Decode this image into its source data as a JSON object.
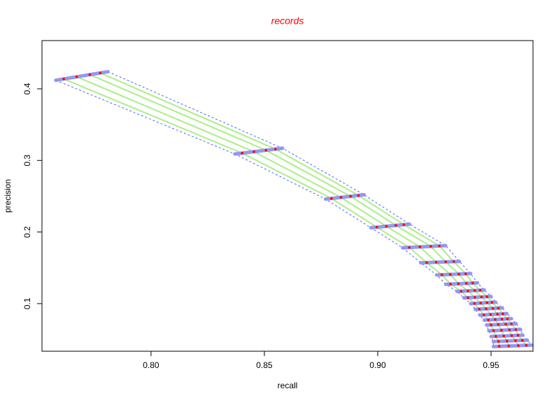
{
  "chart_data": {
    "type": "line",
    "title": "records",
    "title_color": "#ff0000",
    "xlabel": "recall",
    "ylabel": "precision",
    "xlim": [
      0.7519,
      0.9685
    ],
    "ylim": [
      0.0335,
      0.4674
    ],
    "xticks": [
      {
        "value": 0.8,
        "label": "0.80"
      },
      0.85,
      {
        "value": 0.9,
        "label": "0.90"
      },
      0.95
    ],
    "yticks": [
      0.1,
      0.2,
      0.3,
      0.4
    ],
    "run_color": "#8fe860",
    "point_color": "#ff0000",
    "band_color": "#8c8cf0",
    "envelope_color": "#3355ff",
    "bands": {
      "x_lo": [
        0.758,
        0.837,
        0.877,
        0.897,
        0.911,
        0.919,
        0.926,
        0.93,
        0.935,
        0.938,
        0.941,
        0.943,
        0.945,
        0.947,
        0.948,
        0.949,
        0.95,
        0.951,
        0.951
      ],
      "x_hi": [
        0.781,
        0.858,
        0.894,
        0.914,
        0.93,
        0.936,
        0.941,
        0.944,
        0.947,
        0.95,
        0.952,
        0.955,
        0.957,
        0.959,
        0.961,
        0.963,
        0.964,
        0.966,
        0.968
      ],
      "y_lo": [
        0.412,
        0.309,
        0.246,
        0.206,
        0.178,
        0.157,
        0.14,
        0.127,
        0.117,
        0.108,
        0.1,
        0.092,
        0.084,
        0.077,
        0.07,
        0.062,
        0.054,
        0.047,
        0.04
      ],
      "y_hi": [
        0.424,
        0.317,
        0.252,
        0.211,
        0.181,
        0.159,
        0.142,
        0.129,
        0.119,
        0.11,
        0.102,
        0.094,
        0.086,
        0.079,
        0.072,
        0.064,
        0.056,
        0.049,
        0.042
      ]
    },
    "series": [
      {
        "x": [
          0.7615,
          0.8402,
          0.8796,
          0.8996,
          0.9139,
          0.9216,
          0.9283,
          0.9321,
          0.9368,
          0.9398,
          0.9427,
          0.9448,
          0.9468,
          0.9488,
          0.95,
          0.9511,
          0.9521,
          0.9533,
          0.9536
        ],
        "values": [
          0.4138,
          0.3102,
          0.2469,
          0.2068,
          0.1785,
          0.1573,
          0.1403,
          0.1273,
          0.1173,
          0.1083,
          0.1003,
          0.0923,
          0.0843,
          0.0773,
          0.0703,
          0.0623,
          0.0543,
          0.0473,
          0.0403
        ]
      },
      {
        "x": [
          0.7672,
          0.8454,
          0.8838,
          0.9038,
          0.9186,
          0.9258,
          0.932,
          0.9356,
          0.9398,
          0.9428,
          0.9454,
          0.9478,
          0.9498,
          0.9518,
          0.9532,
          0.9546,
          0.9556,
          0.957,
          0.9578
        ],
        "values": [
          0.4168,
          0.3122,
          0.2484,
          0.208,
          0.1792,
          0.1578,
          0.1408,
          0.1278,
          0.1178,
          0.1088,
          0.1008,
          0.0928,
          0.0848,
          0.0778,
          0.0708,
          0.0628,
          0.0548,
          0.0478,
          0.0408
        ]
      },
      {
        "x": [
          0.773,
          0.8507,
          0.888,
          0.908,
          0.9234,
          0.93,
          0.9358,
          0.9391,
          0.9428,
          0.9458,
          0.9482,
          0.9508,
          0.9528,
          0.9548,
          0.9565,
          0.9581,
          0.9591,
          0.9608,
          0.962
        ],
        "values": [
          0.4198,
          0.3142,
          0.2499,
          0.2093,
          0.17995,
          0.1583,
          0.1413,
          0.1283,
          0.1183,
          0.1093,
          0.1013,
          0.0933,
          0.0853,
          0.0783,
          0.0713,
          0.0633,
          0.0553,
          0.0483,
          0.0413
        ]
      },
      {
        "x": [
          0.7776,
          0.8549,
          0.8915,
          0.9115,
          0.9272,
          0.9335,
          0.9388,
          0.9419,
          0.9452,
          0.9482,
          0.9504,
          0.9532,
          0.9552,
          0.9572,
          0.959,
          0.9609,
          0.9619,
          0.9638,
          0.9655
        ],
        "values": [
          0.4222,
          0.3158,
          0.2511,
          0.2103,
          0.18055,
          0.1587,
          0.1417,
          0.1287,
          0.1187,
          0.1097,
          0.1017,
          0.0937,
          0.0857,
          0.0787,
          0.0717,
          0.0637,
          0.0557,
          0.0487,
          0.0417
        ]
      }
    ]
  }
}
